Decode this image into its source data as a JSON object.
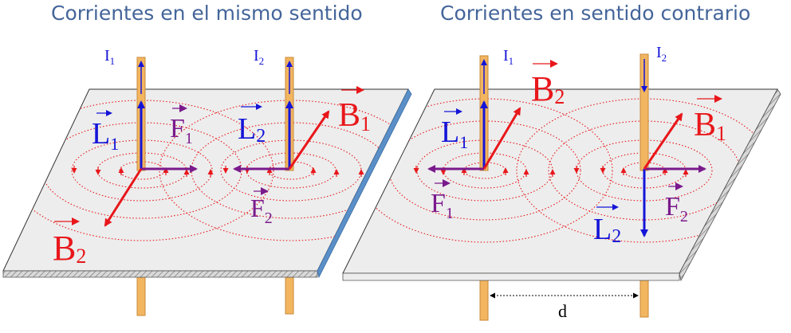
{
  "titles": {
    "left": "Corrientes en el mismo sentido",
    "right": "Corrientes en sentido contrario"
  },
  "left_panel": {
    "current_1": {
      "sym": "I",
      "sub": "1"
    },
    "current_2": {
      "sym": "I",
      "sub": "2"
    },
    "length_1": {
      "sym": "L",
      "sub": "1"
    },
    "length_2": {
      "sym": "L",
      "sub": "2"
    },
    "force_1": {
      "sym": "F",
      "sub": "1"
    },
    "force_2": {
      "sym": "F",
      "sub": "2"
    },
    "field_1": {
      "sym": "B",
      "sub": "1"
    },
    "field_2": {
      "sym": "B",
      "sub": "2"
    }
  },
  "right_panel": {
    "current_1": {
      "sym": "I",
      "sub": "1"
    },
    "current_2": {
      "sym": "I",
      "sub": "2"
    },
    "length_1": {
      "sym": "L",
      "sub": "1"
    },
    "length_2": {
      "sym": "L",
      "sub": "2"
    },
    "force_1": {
      "sym": "F",
      "sub": "1"
    },
    "force_2": {
      "sym": "F",
      "sub": "2"
    },
    "field_1": {
      "sym": "B",
      "sub": "1"
    },
    "field_2": {
      "sym": "B",
      "sub": "2"
    },
    "distance": "d"
  },
  "colors": {
    "title": "#44659a",
    "field": "#e8171b",
    "length": "#1414d8",
    "force": "#7a1a8c",
    "wire": "#f2b560",
    "plate_edge": "#5a8fc8"
  }
}
